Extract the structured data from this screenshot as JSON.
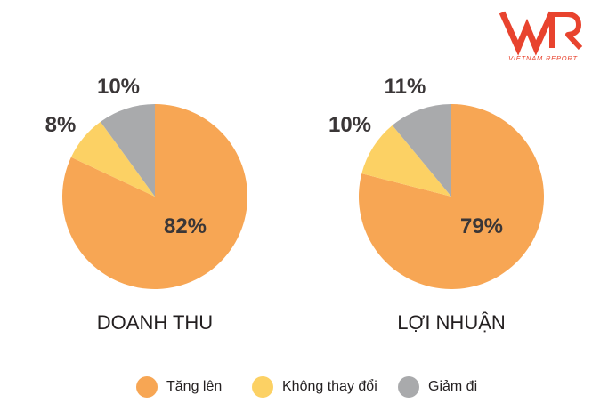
{
  "brand": {
    "logo_text": "VNR",
    "tagline": "VIETNAM REPORT",
    "color": "#e8432e"
  },
  "colors": {
    "Tăng lên": "#f7a654",
    "Không thay đổi": "#fcd164",
    "Giảm đi": "#a9aaac"
  },
  "chart_data": [
    {
      "type": "pie",
      "title": "DOANH THU",
      "categories": [
        "Tăng lên",
        "Không thay đổi",
        "Giảm đi"
      ],
      "values": [
        82,
        8,
        10
      ],
      "labels": [
        "82%",
        "8%",
        "10%"
      ]
    },
    {
      "type": "pie",
      "title": "LỢI NHUẬN",
      "categories": [
        "Tăng lên",
        "Không thay đổi",
        "Giảm đi"
      ],
      "values": [
        79,
        10,
        11
      ],
      "labels": [
        "79%",
        "10%",
        "11%"
      ]
    }
  ],
  "legend": {
    "placement": "bottom",
    "items": [
      "Tăng lên",
      "Không thay đổi",
      "Giảm đi"
    ]
  }
}
